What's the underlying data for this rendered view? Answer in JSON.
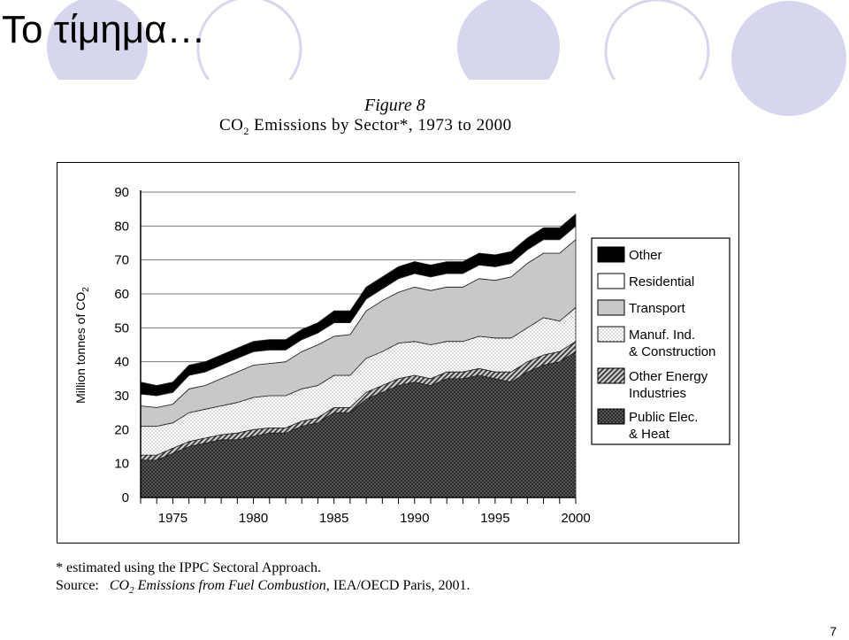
{
  "slide": {
    "title": "Το τίμημα…",
    "page_number": "7"
  },
  "figure": {
    "label": "Figure 8",
    "title_prefix": "CO",
    "title_sub": "2",
    "title_suffix": " Emissions by Sector*, 1973 to 2000",
    "footnote": "* estimated using the IPPC Sectoral Approach.",
    "source_label": "Source:",
    "source_title_prefix": "CO",
    "source_title_sub": "2",
    "source_title_suffix": " Emissions from Fuel Combustion,",
    "source_rest": " IEA/OECD Paris, 2001."
  },
  "colors": {
    "circle_fill": "#d6d6ee",
    "other": "#000000",
    "residential": "#ffffff",
    "transport": "#c8c8c8",
    "manuf": "#f2f2f2",
    "other_energy": "#9a9a9a",
    "public_elec": "#555555"
  },
  "chart_data": {
    "type": "area",
    "stacked": true,
    "ylabel": "Million tonnes of CO2",
    "ylim": [
      0,
      90
    ],
    "y_ticks": [
      "0",
      "10",
      "20",
      "30",
      "40",
      "50",
      "60",
      "70",
      "80",
      "90"
    ],
    "xlim": [
      1973,
      2000
    ],
    "x_ticks": [
      "1975",
      "1980",
      "1985",
      "1990",
      "1995",
      "2000"
    ],
    "legend_position": "right",
    "x": [
      1973,
      1974,
      1975,
      1976,
      1977,
      1978,
      1979,
      1980,
      1981,
      1982,
      1983,
      1984,
      1985,
      1986,
      1987,
      1988,
      1989,
      1990,
      1991,
      1992,
      1993,
      1994,
      1995,
      1996,
      1997,
      1998,
      1999,
      2000
    ],
    "series": [
      {
        "name": "Public Elec. & Heat",
        "key": "public_elec",
        "pattern": "dots-dark",
        "values": [
          11,
          11,
          13,
          15,
          16,
          17,
          17,
          18,
          19,
          19,
          21,
          22,
          25,
          25,
          29,
          31,
          33,
          34,
          33,
          35,
          35,
          36,
          35,
          34,
          37,
          39,
          40,
          43
        ]
      },
      {
        "name": "Other Energy Industries",
        "key": "other_energy",
        "pattern": "hatch",
        "values": [
          1.5,
          1.5,
          1.5,
          1.5,
          1.5,
          1.5,
          2,
          2,
          1.5,
          1.5,
          1.5,
          1.5,
          1.5,
          1.5,
          2,
          2,
          2,
          2,
          2,
          2,
          2,
          2,
          2,
          3,
          3,
          3,
          3,
          3
        ]
      },
      {
        "name": "Manuf. Ind. & Construction",
        "key": "manuf",
        "pattern": "dots-light",
        "values": [
          8.5,
          8.5,
          7.5,
          8.5,
          8.5,
          8.5,
          9,
          9.5,
          9.5,
          9.5,
          9.5,
          9.5,
          9.5,
          9.5,
          10,
          10,
          10.5,
          10,
          10,
          9,
          9,
          9.5,
          10,
          10,
          10,
          11,
          9,
          10
        ]
      },
      {
        "name": "Transport",
        "key": "transport",
        "pattern": "solid",
        "values": [
          6,
          5.5,
          5.5,
          7,
          7,
          8,
          9,
          9.5,
          9.5,
          10,
          11,
          12,
          11.5,
          12,
          14,
          15,
          15,
          16,
          16,
          16,
          16,
          17,
          17,
          18,
          19,
          19,
          20,
          20
        ]
      },
      {
        "name": "Residential",
        "key": "residential",
        "pattern": "solid",
        "values": [
          3.5,
          3.5,
          3.5,
          4,
          4,
          4,
          4,
          4,
          4,
          3.5,
          3.5,
          3.5,
          4,
          3.5,
          3.5,
          3.5,
          4,
          4,
          4,
          4,
          4,
          4,
          4,
          4,
          4,
          4,
          4,
          4
        ]
      },
      {
        "name": "Other",
        "key": "other",
        "pattern": "solid",
        "values": [
          3.5,
          3,
          3,
          3,
          3,
          3,
          3,
          3,
          3,
          3,
          3,
          3,
          3.5,
          3.5,
          3.5,
          3.5,
          3.5,
          3.5,
          3.5,
          3.5,
          3.5,
          3.5,
          3.5,
          3.5,
          3.5,
          3.5,
          3.5,
          3.5
        ]
      }
    ],
    "legend_order": [
      "other",
      "residential",
      "transport",
      "manuf",
      "other_energy",
      "public_elec"
    ],
    "legend_lines": {
      "other": [
        "Other"
      ],
      "residential": [
        "Residential"
      ],
      "transport": [
        "Transport"
      ],
      "manuf": [
        "Manuf. Ind.",
        "& Construction"
      ],
      "other_energy": [
        "Other Energy",
        "Industries"
      ],
      "public_elec": [
        "Public Elec.",
        "& Heat"
      ]
    }
  }
}
